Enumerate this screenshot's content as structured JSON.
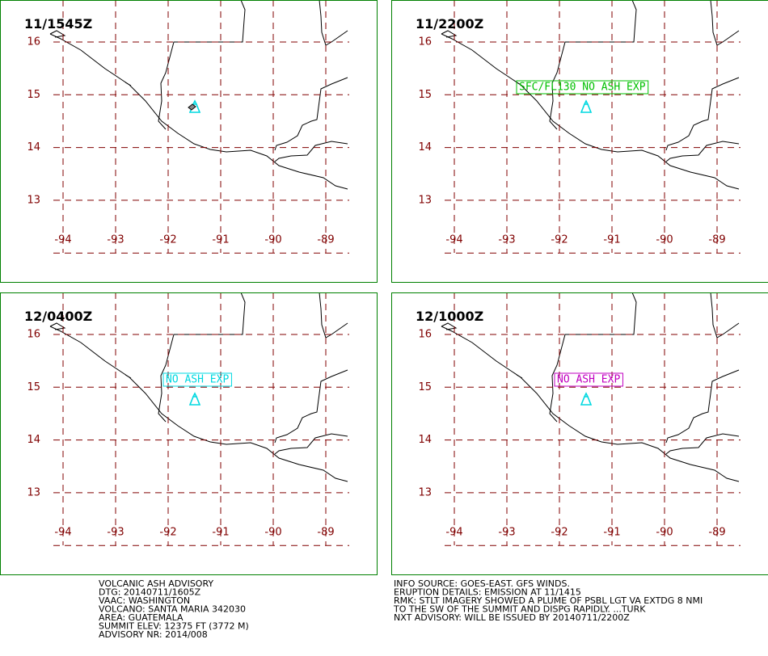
{
  "panels": [
    {
      "title": "11/1545Z"
    },
    {
      "title": "11/2200Z",
      "annotation": "SFC/FL130 NO ASH EXP",
      "annotation_color": "#00c000"
    },
    {
      "title": "12/0400Z",
      "annotation": "NO ASH EXP",
      "annotation_color": "#00d8e0"
    },
    {
      "title": "12/1000Z",
      "annotation": "NO ASH EXP",
      "annotation_color": "#c000c0"
    }
  ],
  "grid": {
    "lon_labels": [
      "-94",
      "-93",
      "-92",
      "-91",
      "-90",
      "-89"
    ],
    "lat_labels": [
      "16",
      "15",
      "14",
      "13"
    ]
  },
  "footer": {
    "left": [
      "VOLCANIC ASH ADVISORY",
      "DTG: 20140711/1605Z",
      "VAAC: WASHINGTON",
      "VOLCANO: SANTA MARIA 342030",
      "AREA: GUATEMALA",
      "SUMMIT ELEV: 12375 FT (3772 M)",
      "ADVISORY NR: 2014/008"
    ],
    "right": [
      "INFO SOURCE: GOES-EAST. GFS WINDS.",
      "ERUPTION DETAILS: EMISSION AT 11/1415",
      "RMK: STLT IMAGERY SHOWED A PLUME OF PSBL LGT VA EXTDG 8 NMI",
      "TO THE SW OF THE SUMMIT AND DISPG RAPIDLY. ...TURK",
      "NXT ADVISORY: WILL BE ISSUED BY 20140711/2200Z"
    ]
  }
}
